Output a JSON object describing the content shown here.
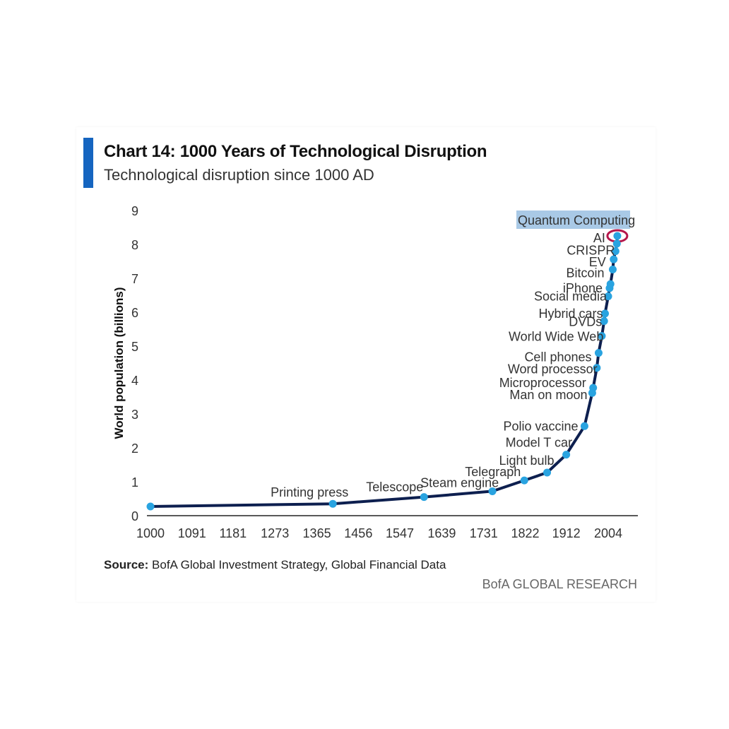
{
  "header": {
    "title": "Chart 14: 1000 Years of Technological Disruption",
    "subtitle": "Technological disruption since 1000 AD"
  },
  "footer": {
    "source_label": "Source:",
    "source_text": "BofA Global Investment Strategy, Global Financial Data",
    "brand": "BofA GLOBAL RESEARCH"
  },
  "colors": {
    "accent": "#1565c0",
    "line": "#0d1f4f",
    "point": "#29a3e0",
    "highlight_ring": "#b5174b",
    "label_highlight": "#a9c9e6"
  },
  "chart_data": {
    "type": "line",
    "ylabel": "World population (billions)",
    "xlabel": "",
    "ylim": [
      0,
      9
    ],
    "yticks": [
      0,
      1,
      2,
      3,
      4,
      5,
      6,
      7,
      8,
      9
    ],
    "xlim": [
      1000,
      2030
    ],
    "xticks": [
      1000,
      1091,
      1181,
      1273,
      1365,
      1456,
      1547,
      1639,
      1731,
      1822,
      1912,
      2004
    ],
    "grid": false,
    "series": [
      {
        "points": [
          {
            "x": 1000,
            "y": 0.27
          },
          {
            "x": 1400,
            "y": 0.35,
            "label": "Printing press"
          },
          {
            "x": 1600,
            "y": 0.55,
            "label": "Telescope"
          },
          {
            "x": 1750,
            "y": 0.72,
            "label": "Steam engine"
          },
          {
            "x": 1820,
            "y": 1.04,
            "label": "Telegraph"
          },
          {
            "x": 1870,
            "y": 1.27,
            "label": "Light bulb"
          },
          {
            "x": 1912,
            "y": 1.8,
            "label": "Model T car"
          },
          {
            "x": 1952,
            "y": 2.64,
            "label": "Polio vaccine"
          },
          {
            "x": 1969,
            "y": 3.62,
            "label": "Man on moon"
          },
          {
            "x": 1971,
            "y": 3.77,
            "label": "Microprocessor"
          },
          {
            "x": 1979,
            "y": 4.36,
            "label": "Word processor"
          },
          {
            "x": 1983,
            "y": 4.8,
            "label": "Cell phones"
          },
          {
            "x": 1990,
            "y": 5.3,
            "label": "World Wide Web"
          },
          {
            "x": 1995,
            "y": 5.74,
            "label": "DVDs"
          },
          {
            "x": 1997,
            "y": 5.96,
            "label": "Hybrid cars"
          },
          {
            "x": 2004,
            "y": 6.47,
            "label": "Social media"
          },
          {
            "x": 2007,
            "y": 6.71,
            "label": "iPhone"
          },
          {
            "x": 2009,
            "y": 6.83
          },
          {
            "x": 2014,
            "y": 7.26,
            "label": "Bitcoin"
          },
          {
            "x": 2016,
            "y": 7.56,
            "label": "EV"
          },
          {
            "x": 2020,
            "y": 7.8,
            "label": "CRISPR"
          },
          {
            "x": 2023,
            "y": 8.02
          },
          {
            "x": 2024,
            "y": 8.25,
            "label": "AI"
          }
        ],
        "top_annotation": "Quantum Computing"
      }
    ]
  }
}
